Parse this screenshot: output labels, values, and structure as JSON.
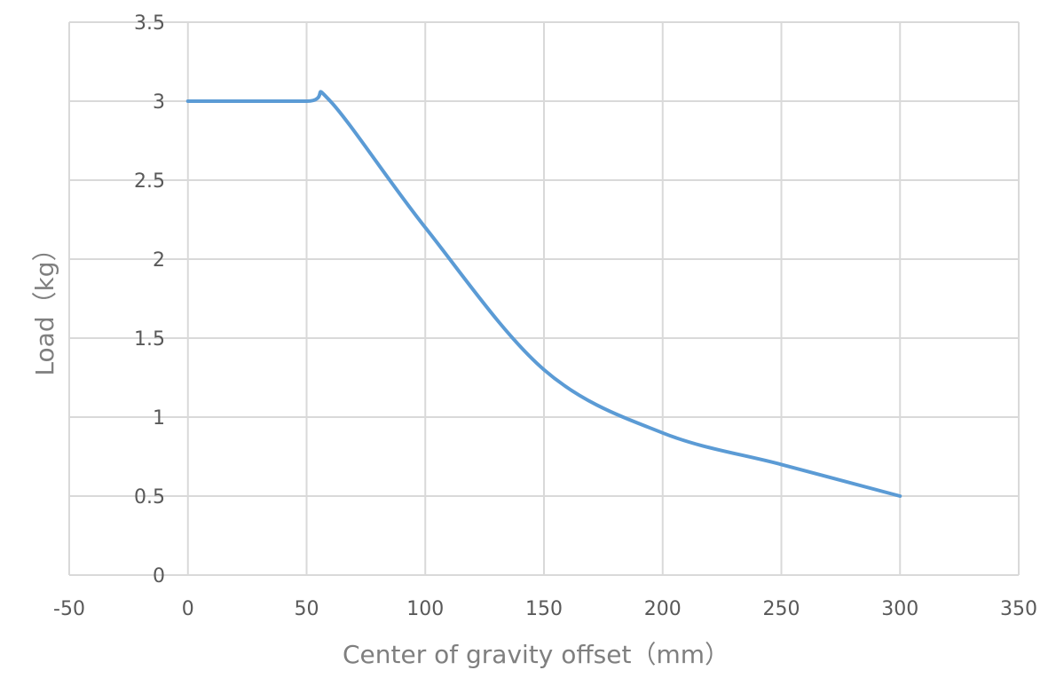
{
  "chart_data": {
    "type": "line",
    "title": "",
    "xlabel": "Center of gravity offset（mm）",
    "ylabel": "Load（kg）",
    "xlim": [
      -50,
      350
    ],
    "ylim": [
      0,
      3.5
    ],
    "x_ticks": [
      -50,
      0,
      50,
      100,
      150,
      200,
      250,
      300,
      350
    ],
    "y_ticks": [
      0,
      0.5,
      1,
      1.5,
      2,
      2.5,
      3,
      3.5
    ],
    "x_tick_labels": [
      "-50",
      "0",
      "50",
      "100",
      "150",
      "200",
      "250",
      "300",
      "350"
    ],
    "y_tick_labels": [
      "0",
      "0.5",
      "1",
      "1.5",
      "2",
      "2.5",
      "3",
      "3.5"
    ],
    "grid": true,
    "legend": "none",
    "series": [
      {
        "color": "#5b9bd5",
        "smooth": true,
        "points": [
          {
            "x": 0,
            "y": 3
          },
          {
            "x": 50,
            "y": 3
          },
          {
            "x": 60,
            "y": 3
          },
          {
            "x": 100,
            "y": 2.2
          },
          {
            "x": 150,
            "y": 1.3
          },
          {
            "x": 200,
            "y": 0.9
          },
          {
            "x": 250,
            "y": 0.7
          },
          {
            "x": 300,
            "y": 0.5
          }
        ]
      }
    ]
  }
}
